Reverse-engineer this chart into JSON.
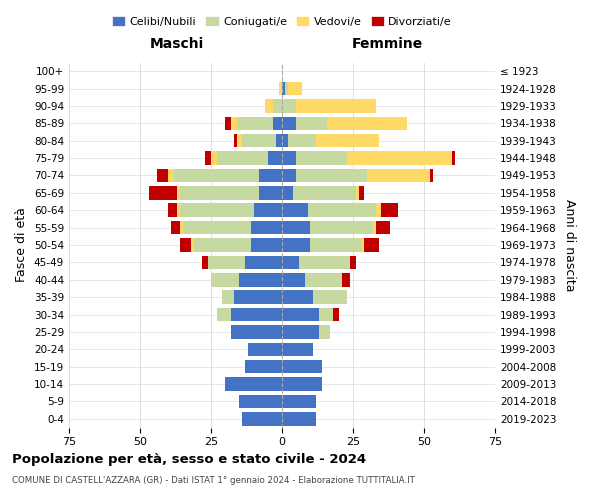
{
  "age_groups": [
    "0-4",
    "5-9",
    "10-14",
    "15-19",
    "20-24",
    "25-29",
    "30-34",
    "35-39",
    "40-44",
    "45-49",
    "50-54",
    "55-59",
    "60-64",
    "65-69",
    "70-74",
    "75-79",
    "80-84",
    "85-89",
    "90-94",
    "95-99",
    "100+"
  ],
  "birth_years": [
    "2019-2023",
    "2014-2018",
    "2009-2013",
    "2004-2008",
    "1999-2003",
    "1994-1998",
    "1989-1993",
    "1984-1988",
    "1979-1983",
    "1974-1978",
    "1969-1973",
    "1964-1968",
    "1959-1963",
    "1954-1958",
    "1949-1953",
    "1944-1948",
    "1939-1943",
    "1934-1938",
    "1929-1933",
    "1924-1928",
    "≤ 1923"
  ],
  "colors": {
    "celibe": "#4472c4",
    "coniugato": "#c5d9a0",
    "vedovo": "#ffd966",
    "divorziato": "#c00000"
  },
  "maschi": {
    "celibe": [
      14,
      15,
      20,
      13,
      12,
      18,
      18,
      17,
      15,
      13,
      11,
      11,
      10,
      8,
      8,
      5,
      2,
      3,
      0,
      0,
      0
    ],
    "coniugato": [
      0,
      0,
      0,
      0,
      0,
      0,
      5,
      4,
      10,
      13,
      20,
      24,
      26,
      28,
      30,
      18,
      12,
      13,
      3,
      0,
      0
    ],
    "vedovo": [
      0,
      0,
      0,
      0,
      0,
      0,
      0,
      0,
      0,
      0,
      1,
      1,
      1,
      1,
      2,
      2,
      2,
      2,
      3,
      1,
      0
    ],
    "divorziato": [
      0,
      0,
      0,
      0,
      0,
      0,
      0,
      0,
      0,
      2,
      4,
      3,
      3,
      10,
      4,
      2,
      1,
      2,
      0,
      0,
      0
    ]
  },
  "femmine": {
    "nubile": [
      12,
      12,
      14,
      14,
      11,
      13,
      13,
      11,
      8,
      6,
      10,
      10,
      9,
      4,
      5,
      5,
      2,
      5,
      0,
      1,
      0
    ],
    "coniugata": [
      0,
      0,
      0,
      0,
      0,
      4,
      5,
      12,
      13,
      18,
      18,
      22,
      24,
      22,
      25,
      18,
      10,
      11,
      5,
      1,
      0
    ],
    "vedova": [
      0,
      0,
      0,
      0,
      0,
      0,
      0,
      0,
      0,
      0,
      1,
      1,
      2,
      1,
      22,
      37,
      22,
      28,
      28,
      5,
      0
    ],
    "divorziata": [
      0,
      0,
      0,
      0,
      0,
      0,
      2,
      0,
      3,
      2,
      5,
      5,
      6,
      2,
      1,
      1,
      0,
      0,
      0,
      0,
      0
    ]
  },
  "xlim": 75,
  "title_main": "Popolazione per età, sesso e stato civile - 2024",
  "title_sub": "COMUNE DI CASTELL'AZZARA (GR) - Dati ISTAT 1° gennaio 2024 - Elaborazione TUTTITALIA.IT",
  "ylabel_left": "Fasce di età",
  "ylabel_right": "Anni di nascita",
  "xlabel_left": "Maschi",
  "xlabel_right": "Femmine",
  "legend_labels": [
    "Celibi/Nubili",
    "Coniugati/e",
    "Vedovi/e",
    "Divorziati/e"
  ],
  "background_color": "#ffffff",
  "grid_color": "#dddddd"
}
